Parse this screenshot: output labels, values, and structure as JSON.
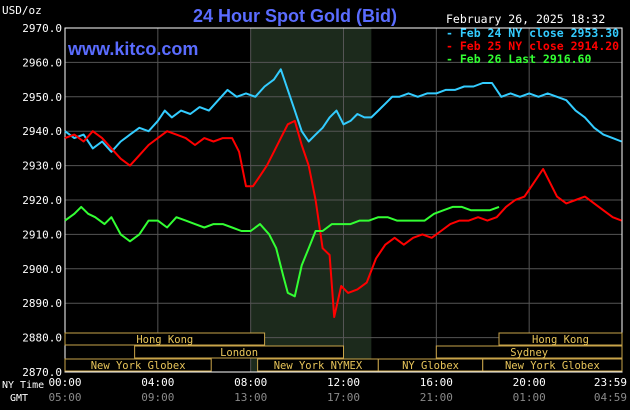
{
  "chart_data": {
    "type": "line",
    "title": "24 Hour Spot Gold (Bid)",
    "website": "www.kitco.com",
    "date_stamp": "February 26, 2025 18:32",
    "unit_label": "USD/oz",
    "y_ticks": [
      "2970.0",
      "2960.0",
      "2950.0",
      "2940.0",
      "2930.0",
      "2920.0",
      "2910.0",
      "2900.0",
      "2890.0",
      "2880.0",
      "2870.0"
    ],
    "ylim": [
      2870,
      2970
    ],
    "x_axis": {
      "ny_label": "NY Time",
      "gmt_label": "GMT",
      "ny_ticks": [
        "00:00",
        "04:00",
        "08:00",
        "12:00",
        "16:00",
        "20:00",
        "23:59"
      ],
      "gmt_ticks": [
        "05:00",
        "09:00",
        "13:00",
        "17:00",
        "21:00",
        "01:00",
        "04:59"
      ],
      "range_hours": [
        0,
        24
      ]
    },
    "highlight_hours": [
      8,
      13.2
    ],
    "grid": true,
    "legend_position": "top-right",
    "series": [
      {
        "name": "Feb 24 NY close",
        "value_label": "2953.30",
        "color": "#33ccff",
        "points": [
          [
            0,
            2940
          ],
          [
            0.4,
            2938
          ],
          [
            0.8,
            2939
          ],
          [
            1.2,
            2935
          ],
          [
            1.6,
            2937
          ],
          [
            2,
            2934
          ],
          [
            2.4,
            2937
          ],
          [
            2.8,
            2939
          ],
          [
            3.2,
            2941
          ],
          [
            3.6,
            2940
          ],
          [
            4,
            2943
          ],
          [
            4.3,
            2946
          ],
          [
            4.6,
            2944
          ],
          [
            5,
            2946
          ],
          [
            5.4,
            2945
          ],
          [
            5.8,
            2947
          ],
          [
            6.2,
            2946
          ],
          [
            6.6,
            2949
          ],
          [
            7,
            2952
          ],
          [
            7.4,
            2950
          ],
          [
            7.8,
            2951
          ],
          [
            8.2,
            2950
          ],
          [
            8.6,
            2953
          ],
          [
            9,
            2955
          ],
          [
            9.3,
            2958
          ],
          [
            9.6,
            2952
          ],
          [
            9.9,
            2946
          ],
          [
            10.2,
            2940
          ],
          [
            10.5,
            2937
          ],
          [
            10.8,
            2939
          ],
          [
            11.1,
            2941
          ],
          [
            11.4,
            2944
          ],
          [
            11.7,
            2946
          ],
          [
            12,
            2942
          ],
          [
            12.3,
            2943
          ],
          [
            12.6,
            2945
          ],
          [
            12.9,
            2944
          ],
          [
            13.2,
            2944
          ],
          [
            13.5,
            2946
          ],
          [
            13.8,
            2948
          ],
          [
            14.1,
            2950
          ],
          [
            14.4,
            2950
          ],
          [
            14.8,
            2951
          ],
          [
            15.2,
            2950
          ],
          [
            15.6,
            2951
          ],
          [
            16,
            2951
          ],
          [
            16.4,
            2952
          ],
          [
            16.8,
            2952
          ],
          [
            17.2,
            2953
          ],
          [
            17.6,
            2953
          ],
          [
            18,
            2954
          ],
          [
            18.4,
            2954
          ],
          [
            18.8,
            2950
          ],
          [
            19.2,
            2951
          ],
          [
            19.6,
            2950
          ],
          [
            20,
            2951
          ],
          [
            20.4,
            2950
          ],
          [
            20.8,
            2951
          ],
          [
            21.2,
            2950
          ],
          [
            21.6,
            2949
          ],
          [
            22,
            2946
          ],
          [
            22.4,
            2944
          ],
          [
            22.8,
            2941
          ],
          [
            23.2,
            2939
          ],
          [
            23.6,
            2938
          ],
          [
            23.98,
            2937
          ]
        ]
      },
      {
        "name": "Feb 25 NY close",
        "value_label": "2914.20",
        "color": "#ff0000",
        "points": [
          [
            0,
            2938
          ],
          [
            0.4,
            2939
          ],
          [
            0.8,
            2937
          ],
          [
            1.2,
            2940
          ],
          [
            1.6,
            2938
          ],
          [
            2,
            2935
          ],
          [
            2.4,
            2932
          ],
          [
            2.8,
            2930
          ],
          [
            3.2,
            2933
          ],
          [
            3.6,
            2936
          ],
          [
            4,
            2938
          ],
          [
            4.4,
            2940
          ],
          [
            4.8,
            2939
          ],
          [
            5.2,
            2938
          ],
          [
            5.6,
            2936
          ],
          [
            6,
            2938
          ],
          [
            6.4,
            2937
          ],
          [
            6.8,
            2938
          ],
          [
            7.2,
            2938
          ],
          [
            7.5,
            2934
          ],
          [
            7.8,
            2924
          ],
          [
            8.1,
            2924
          ],
          [
            8.4,
            2927
          ],
          [
            8.7,
            2930
          ],
          [
            9,
            2934
          ],
          [
            9.3,
            2938
          ],
          [
            9.6,
            2942
          ],
          [
            9.9,
            2943
          ],
          [
            10.2,
            2936
          ],
          [
            10.5,
            2930
          ],
          [
            10.8,
            2920
          ],
          [
            11.1,
            2906
          ],
          [
            11.4,
            2904
          ],
          [
            11.6,
            2886
          ],
          [
            11.9,
            2895
          ],
          [
            12.2,
            2893
          ],
          [
            12.6,
            2894
          ],
          [
            13,
            2896
          ],
          [
            13.4,
            2903
          ],
          [
            13.8,
            2907
          ],
          [
            14.2,
            2909
          ],
          [
            14.6,
            2907
          ],
          [
            15,
            2909
          ],
          [
            15.4,
            2910
          ],
          [
            15.8,
            2909
          ],
          [
            16.2,
            2911
          ],
          [
            16.6,
            2913
          ],
          [
            17,
            2914
          ],
          [
            17.4,
            2914
          ],
          [
            17.8,
            2915
          ],
          [
            18.2,
            2914
          ],
          [
            18.6,
            2915
          ],
          [
            19,
            2918
          ],
          [
            19.4,
            2920
          ],
          [
            19.8,
            2921
          ],
          [
            20.2,
            2925
          ],
          [
            20.6,
            2929
          ],
          [
            20.9,
            2925
          ],
          [
            21.2,
            2921
          ],
          [
            21.6,
            2919
          ],
          [
            22,
            2920
          ],
          [
            22.4,
            2921
          ],
          [
            22.8,
            2919
          ],
          [
            23.2,
            2917
          ],
          [
            23.6,
            2915
          ],
          [
            23.98,
            2914
          ]
        ]
      },
      {
        "name": "Feb 26 Last",
        "value_label": "2916.60",
        "color": "#33ff33",
        "points": [
          [
            0,
            2914
          ],
          [
            0.4,
            2916
          ],
          [
            0.7,
            2918
          ],
          [
            1,
            2916
          ],
          [
            1.3,
            2915
          ],
          [
            1.7,
            2913
          ],
          [
            2,
            2915
          ],
          [
            2.4,
            2910
          ],
          [
            2.8,
            2908
          ],
          [
            3.2,
            2910
          ],
          [
            3.6,
            2914
          ],
          [
            4,
            2914
          ],
          [
            4.4,
            2912
          ],
          [
            4.8,
            2915
          ],
          [
            5.2,
            2914
          ],
          [
            5.6,
            2913
          ],
          [
            6,
            2912
          ],
          [
            6.4,
            2913
          ],
          [
            6.8,
            2913
          ],
          [
            7.2,
            2912
          ],
          [
            7.6,
            2911
          ],
          [
            8,
            2911
          ],
          [
            8.4,
            2913
          ],
          [
            8.8,
            2910
          ],
          [
            9.1,
            2906
          ],
          [
            9.4,
            2898
          ],
          [
            9.6,
            2893
          ],
          [
            9.9,
            2892
          ],
          [
            10.2,
            2901
          ],
          [
            10.5,
            2906
          ],
          [
            10.8,
            2911
          ],
          [
            11.1,
            2911
          ],
          [
            11.5,
            2913
          ],
          [
            11.9,
            2913
          ],
          [
            12.3,
            2913
          ],
          [
            12.7,
            2914
          ],
          [
            13.1,
            2914
          ],
          [
            13.5,
            2915
          ],
          [
            13.9,
            2915
          ],
          [
            14.3,
            2914
          ],
          [
            14.7,
            2914
          ],
          [
            15.1,
            2914
          ],
          [
            15.5,
            2914
          ],
          [
            15.9,
            2916
          ],
          [
            16.3,
            2917
          ],
          [
            16.7,
            2918
          ],
          [
            17.1,
            2918
          ],
          [
            17.5,
            2917
          ],
          [
            17.9,
            2917
          ],
          [
            18.3,
            2917
          ],
          [
            18.7,
            2918
          ]
        ]
      }
    ],
    "sessions": [
      {
        "name": "Hong Kong",
        "row": 0,
        "start_hour": 0,
        "end_hour": 8.6
      },
      {
        "name": "Hong Kong",
        "row": 0,
        "start_hour": 18.7,
        "end_hour": 24
      },
      {
        "name": "London",
        "row": 1,
        "start_hour": 3,
        "end_hour": 12
      },
      {
        "name": "Sydney",
        "row": 1,
        "start_hour": 16,
        "end_hour": 24
      },
      {
        "name": "New York Globex",
        "row": 2,
        "start_hour": 0,
        "end_hour": 6.3
      },
      {
        "name": "New York NYMEX",
        "row": 2,
        "start_hour": 8.3,
        "end_hour": 13.5
      },
      {
        "name": "NY Globex",
        "row": 2,
        "start_hour": 13.5,
        "end_hour": 18
      },
      {
        "name": "New York Globex",
        "row": 2,
        "start_hour": 18,
        "end_hour": 24
      }
    ]
  }
}
